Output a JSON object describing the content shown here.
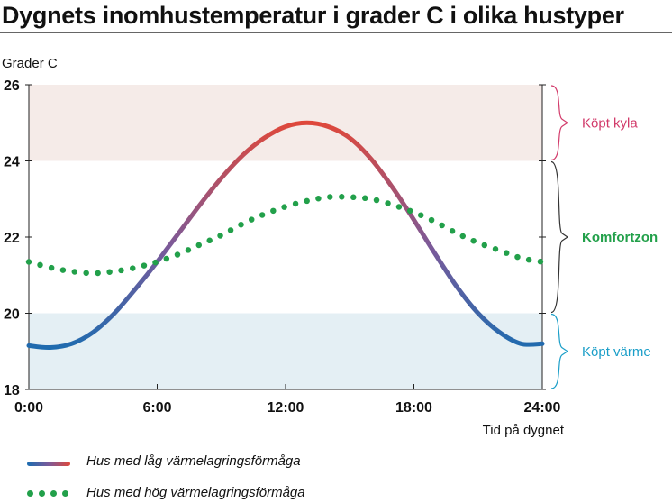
{
  "title": "Dygnets inomhustemperatur i grader C i olika hustyper",
  "colors": {
    "cool_band": "#f5ebe8",
    "heat_band": "#e4eff4",
    "low_storage_start": "#1a6cb0",
    "low_storage_end": "#e0483a",
    "high_storage": "#22a04a",
    "cool_label": "#d23a6a",
    "comfort_label": "#22a04a",
    "heat_label": "#1a9ec8",
    "comfort_brace": "#333333"
  },
  "chart_data": {
    "type": "line",
    "title": "Dygnets inomhustemperatur i grader C i olika hustyper",
    "xlabel": "Tid på dygnet",
    "ylabel": "Grader C",
    "xlim": [
      0,
      24
    ],
    "ylim": [
      18,
      26
    ],
    "x_ticks": [
      "0:00",
      "6:00",
      "12:00",
      "18:00",
      "24:00"
    ],
    "x_tick_values": [
      0,
      6,
      12,
      18,
      24
    ],
    "y_ticks": [
      "18",
      "20",
      "22",
      "24",
      "26"
    ],
    "y_tick_values": [
      18,
      20,
      22,
      24,
      26
    ],
    "grid": false,
    "legend_position": "bottom",
    "zones": [
      {
        "label": "Köpt kyla",
        "y_from": 24,
        "y_to": 26,
        "style": "normal"
      },
      {
        "label": "Komfortzon",
        "y_from": 20,
        "y_to": 24,
        "style": "bold"
      },
      {
        "label": "Köpt värme",
        "y_from": 18,
        "y_to": 20,
        "style": "normal"
      }
    ],
    "series": [
      {
        "name": "Hus med låg värmelagringsförmåga",
        "style": "solid-gradient",
        "x": [
          0,
          1,
          2,
          3,
          4,
          5,
          6,
          7,
          8,
          9,
          10,
          11,
          12,
          13,
          14,
          15,
          16,
          17,
          18,
          19,
          20,
          21,
          22,
          23,
          24
        ],
        "y": [
          19.15,
          19.1,
          19.2,
          19.5,
          20.0,
          20.65,
          21.35,
          22.1,
          22.85,
          23.55,
          24.15,
          24.6,
          24.9,
          25.0,
          24.9,
          24.6,
          24.05,
          23.3,
          22.45,
          21.55,
          20.7,
          20.0,
          19.5,
          19.2,
          19.2
        ]
      },
      {
        "name": "Hus med hög värmelagringsförmåga",
        "style": "dotted",
        "x": [
          0,
          1,
          2,
          3,
          4,
          5,
          6,
          7,
          8,
          9,
          10,
          11,
          12,
          13,
          14,
          15,
          16,
          17,
          18,
          19,
          20,
          21,
          22,
          23,
          24
        ],
        "y": [
          21.35,
          21.2,
          21.1,
          21.05,
          21.1,
          21.2,
          21.35,
          21.55,
          21.8,
          22.05,
          22.35,
          22.6,
          22.8,
          22.95,
          23.05,
          23.05,
          23.0,
          22.85,
          22.65,
          22.4,
          22.1,
          21.85,
          21.65,
          21.45,
          21.35
        ]
      }
    ]
  }
}
